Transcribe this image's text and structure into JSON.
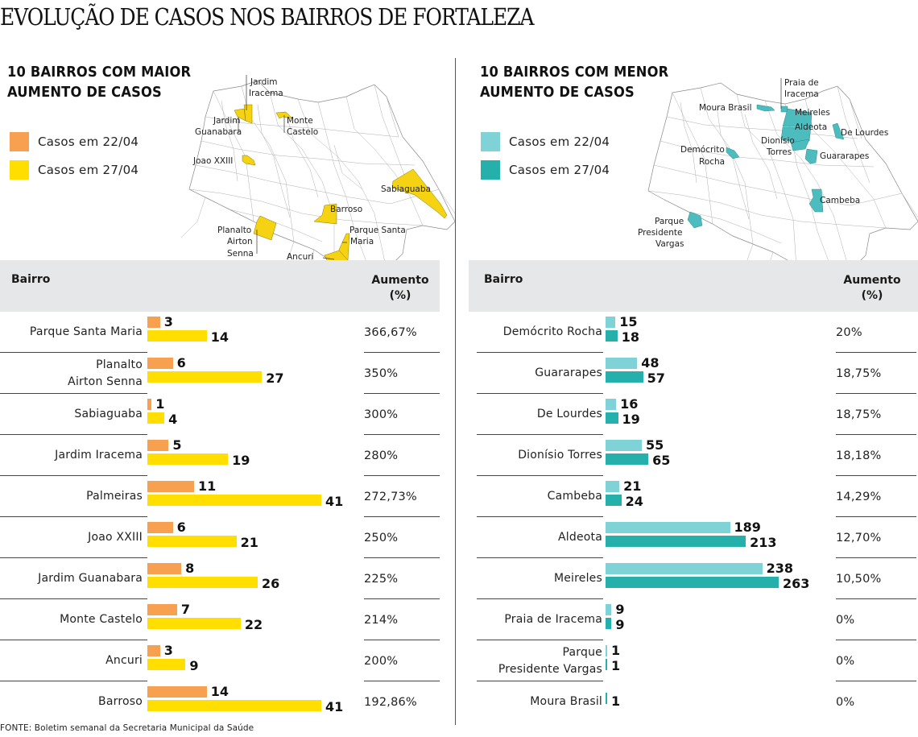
{
  "title": "EVOLUÇÃO DE CASOS NOS BAIRROS DE FORTALEZA",
  "footer": "FONTE: Boletim semanal da Secretaria Municipal da Saúde",
  "colors": {
    "left_22": "#f7a050",
    "left_27": "#ffde00",
    "right_22": "#7fd3d6",
    "right_27": "#26b0ac",
    "map_left": "#f5d312",
    "map_right": "#4cbcbe",
    "header_bg": "#e6e7e8"
  },
  "left": {
    "title_line1": "10 BAIRROS COM MAIOR",
    "title_line2": "AUMENTO DE CASOS",
    "legend": [
      {
        "label": "Casos em 22/04"
      },
      {
        "label": "Casos em 27/04"
      }
    ],
    "map_labels": {
      "jardim_iracema_1": "Jardim",
      "jardim_iracema_2": "Iracema",
      "jardim_guanabara_1": "Jardim",
      "jardim_guanabara_2": "Guanabara",
      "monte_castelo_1": "Monte",
      "monte_castelo_2": "Castelo",
      "joao_xxiii": "Joao XXIII",
      "sabiaguaba": "Sabiaguaba",
      "barroso": "Barroso",
      "planalto_1": "Planalto",
      "planalto_2": "Airton",
      "planalto_3": "Senna",
      "parque_sm_1": "Parque Santa",
      "parque_sm_2": "Maria",
      "ancuri": "Ancuri"
    },
    "header": {
      "bairro": "Bairro",
      "aumento_1": "Aumento",
      "aumento_2": "(%)"
    }
  },
  "right": {
    "title_line1": "10 BAIRROS COM MENOR",
    "title_line2": "AUMENTO DE CASOS",
    "legend": [
      {
        "label": "Casos em 22/04"
      },
      {
        "label": "Casos em 27/04"
      }
    ],
    "map_labels": {
      "praia_1": "Praia de",
      "praia_2": "Iracema",
      "moura_brasil": "Moura Brasil",
      "meireles": "Meireles",
      "aldeota": "Aldeota",
      "de_lourdes": "De Lourdes",
      "dionisio_1": "Dionísio",
      "dionisio_2": "Torres",
      "democrito_1": "Demócrito",
      "democrito_2": "Rocha",
      "guararapes": "Guararapes",
      "cambeba": "Cambeba",
      "ppv_1": "Parque",
      "ppv_2": "Presidente",
      "ppv_3": "Vargas"
    },
    "header": {
      "bairro": "Bairro",
      "aumento_1": "Aumento",
      "aumento_2": "(%)"
    }
  },
  "chart_data": [
    {
      "type": "bar",
      "orientation": "horizontal",
      "title": "10 BAIRROS COM MAIOR AUMENTO DE CASOS",
      "categories": [
        {
          "name": [
            "Parque Santa Maria"
          ],
          "pct": "366,67%"
        },
        {
          "name": [
            "Planalto",
            "Airton Senna"
          ],
          "pct": "350%"
        },
        {
          "name": [
            "Sabiaguaba"
          ],
          "pct": "300%"
        },
        {
          "name": [
            "Jardim Iracema"
          ],
          "pct": "280%"
        },
        {
          "name": [
            "Palmeiras"
          ],
          "pct": "272,73%"
        },
        {
          "name": [
            "Joao XXIII"
          ],
          "pct": "250%"
        },
        {
          "name": [
            "Jardim Guanabara"
          ],
          "pct": "225%"
        },
        {
          "name": [
            "Monte Castelo"
          ],
          "pct": "214%"
        },
        {
          "name": [
            "Ancuri"
          ],
          "pct": "200%"
        },
        {
          "name": [
            "Barroso"
          ],
          "pct": "192,86%"
        }
      ],
      "series": [
        {
          "name": "Casos em 22/04",
          "values": [
            3,
            6,
            1,
            5,
            11,
            6,
            8,
            7,
            3,
            14
          ]
        },
        {
          "name": "Casos em 27/04",
          "values": [
            14,
            27,
            4,
            19,
            41,
            21,
            26,
            22,
            9,
            41
          ]
        }
      ],
      "xlim": [
        0,
        41
      ],
      "legend": "top-left"
    },
    {
      "type": "bar",
      "orientation": "horizontal",
      "title": "10 BAIRROS COM MENOR AUMENTO DE CASOS",
      "categories": [
        {
          "name": [
            "Demócrito Rocha"
          ],
          "pct": "20%"
        },
        {
          "name": [
            "Guararapes"
          ],
          "pct": "18,75%"
        },
        {
          "name": [
            "De Lourdes"
          ],
          "pct": "18,75%"
        },
        {
          "name": [
            "Dionísio Torres"
          ],
          "pct": "18,18%"
        },
        {
          "name": [
            "Cambeba"
          ],
          "pct": "14,29%"
        },
        {
          "name": [
            "Aldeota"
          ],
          "pct": "12,70%"
        },
        {
          "name": [
            "Meireles"
          ],
          "pct": "10,50%"
        },
        {
          "name": [
            "Praia de Iracema"
          ],
          "pct": "0%"
        },
        {
          "name": [
            "Parque",
            "Presidente Vargas"
          ],
          "pct": "0%"
        },
        {
          "name": [
            "Moura Brasil"
          ],
          "pct": "0%"
        }
      ],
      "series": [
        {
          "name": "Casos em 22/04",
          "values": [
            15,
            48,
            16,
            55,
            21,
            189,
            238,
            9,
            1,
            null
          ]
        },
        {
          "name": "Casos em 27/04",
          "values": [
            18,
            57,
            19,
            65,
            24,
            213,
            263,
            9,
            1,
            1
          ]
        }
      ],
      "xlim": [
        0,
        263
      ],
      "legend": "top-left"
    }
  ]
}
